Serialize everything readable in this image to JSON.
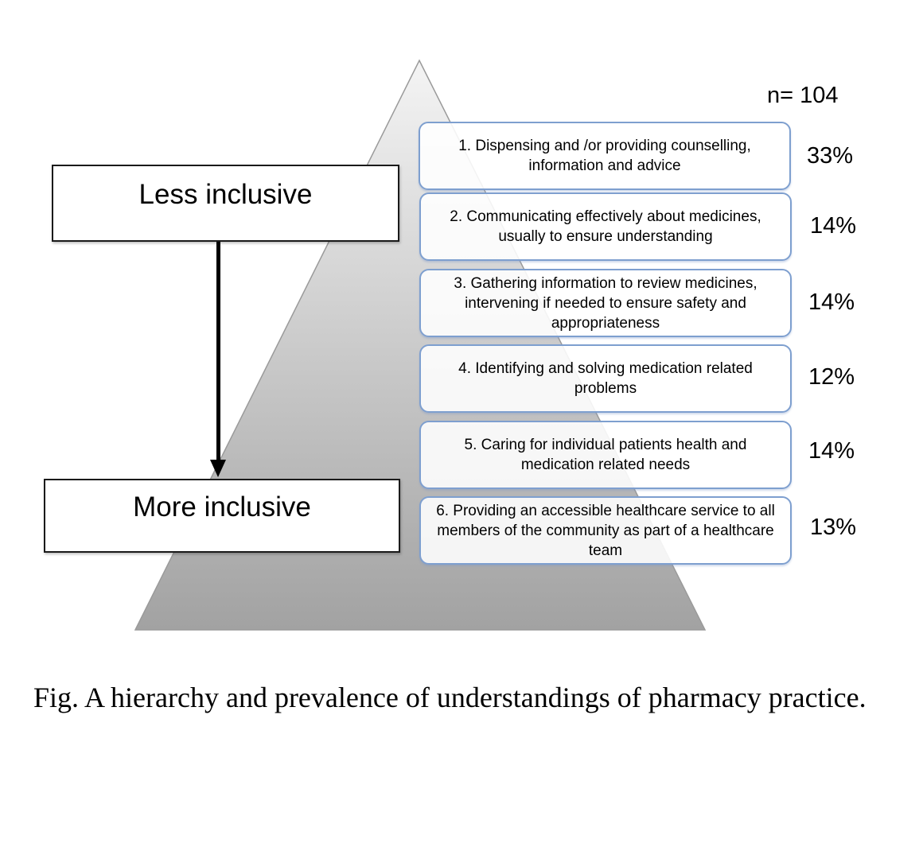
{
  "hierarchy": {
    "top_label": "Less inclusive",
    "bottom_label": "More inclusive"
  },
  "sample": "n= 104",
  "levels": [
    {
      "text": "1. Dispensing and /or providing counselling, information and advice",
      "percent": "33%"
    },
    {
      "text": "2. Communicating effectively about medicines, usually to ensure understanding",
      "percent": "14%"
    },
    {
      "text": "3. Gathering information to review medicines, intervening if needed to ensure safety and appropriateness",
      "percent": "14%"
    },
    {
      "text": "4. Identifying and solving medication related problems",
      "percent": "12%"
    },
    {
      "text": "5. Caring for individual patients health and medication related needs",
      "percent": "14%"
    },
    {
      "text": "6. Providing an accessible healthcare service to all members of the community as part of a healthcare team",
      "percent": "13%"
    }
  ],
  "caption": "Fig. A hierarchy and prevalence of understandings of pharmacy practice.",
  "colors": {
    "box_border": "#7e9fcf",
    "pyramid_top": "#f4f4f4",
    "pyramid_bottom": "#a2a2a2"
  }
}
